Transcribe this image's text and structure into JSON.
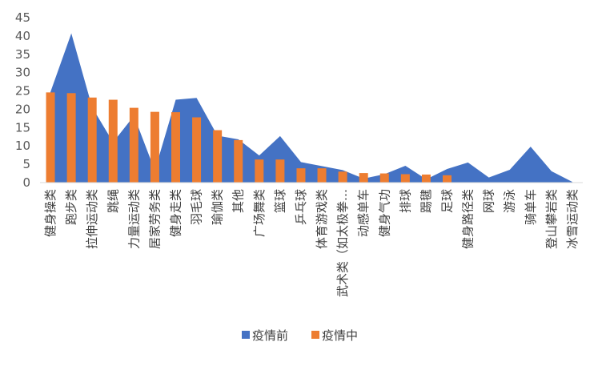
{
  "chart_data": {
    "type": "area",
    "categories": [
      "健身操类",
      "跑步类",
      "拉伸运动类",
      "跳绳",
      "力量运动类",
      "居家劳务类",
      "健身走类",
      "羽毛球",
      "瑜伽类",
      "其他",
      "广场舞类",
      "篮球",
      "乒乓球",
      "体育游戏类",
      "武术类（如太极拳…",
      "动感单车",
      "健身气功",
      "排球",
      "踢毽",
      "足球",
      "健身路径类",
      "网球",
      "游泳",
      "骑单车",
      "登山攀岩类",
      "冰雪运动类"
    ],
    "series": [
      {
        "name": "疫情前",
        "type": "area",
        "color": "#4472C4",
        "values": [
          24.7,
          40.7,
          20.5,
          11.0,
          18.2,
          3.3,
          22.6,
          23.1,
          12.8,
          11.8,
          7.4,
          12.7,
          5.6,
          4.5,
          3.4,
          1.1,
          2.3,
          4.6,
          0.9,
          3.7,
          5.5,
          1.4,
          3.5,
          9.8,
          3.1,
          0.2
        ]
      },
      {
        "name": "疫情中",
        "type": "bar",
        "color": "#ED7D31",
        "values": [
          24.6,
          24.4,
          23.2,
          22.6,
          20.4,
          19.3,
          19.2,
          17.8,
          14.3,
          11.6,
          6.3,
          6.3,
          3.9,
          3.9,
          3.0,
          2.6,
          2.5,
          2.3,
          2.2,
          2.0,
          0,
          0,
          0,
          0,
          0,
          0
        ]
      }
    ],
    "y_ticks": [
      "0",
      "5",
      "10",
      "15",
      "20",
      "25",
      "30",
      "35",
      "40",
      "45"
    ],
    "ylim": [
      0,
      45
    ],
    "grid": false,
    "legend_position": "bottom"
  }
}
